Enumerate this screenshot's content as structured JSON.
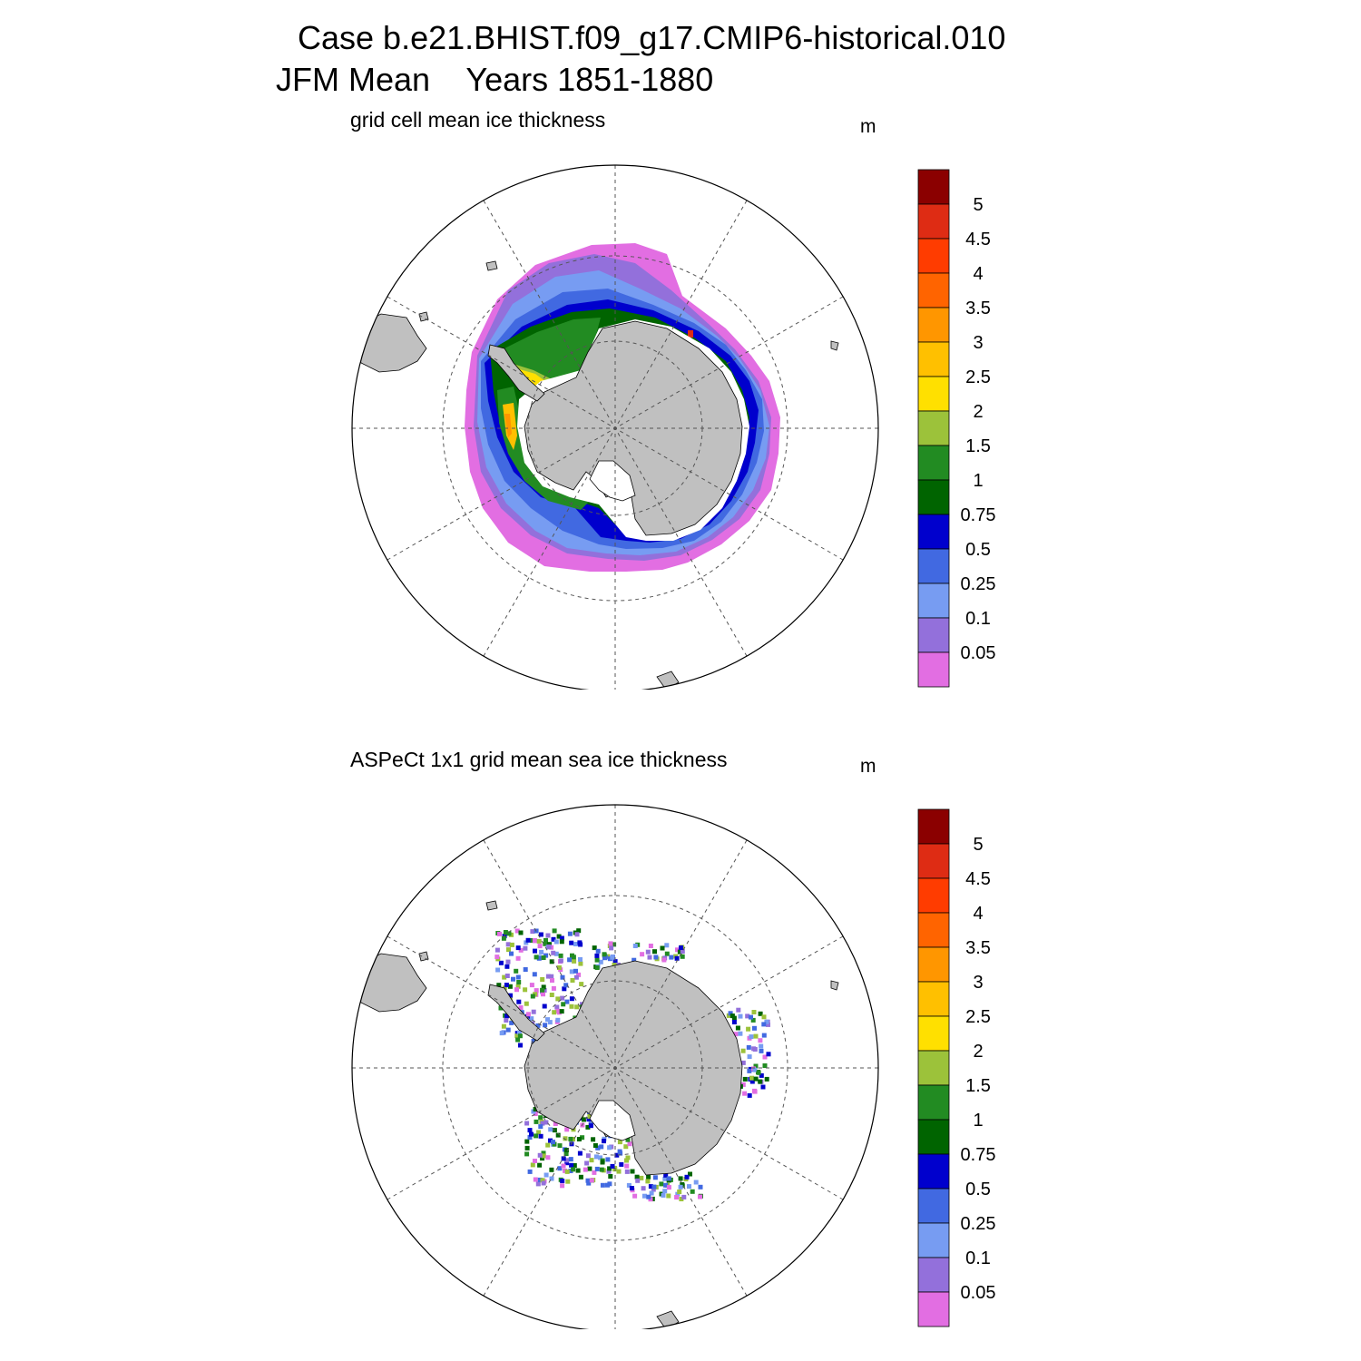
{
  "title": {
    "line1": "Case b.e21.BHIST.f09_g17.CMIP6-historical.010",
    "line2": "JFM Mean    Years 1851-1880"
  },
  "panels": [
    {
      "subtitle": "grid cell mean ice thickness",
      "units": "m"
    },
    {
      "subtitle": "ASPeCt 1x1 grid mean sea ice thickness",
      "units": "m"
    }
  ],
  "colorbar": {
    "labels": [
      "5",
      "4.5",
      "4",
      "3.5",
      "3",
      "2.5",
      "2",
      "1.5",
      "1",
      "0.75",
      "0.5",
      "0.25",
      "0.1",
      "0.05"
    ],
    "colors": [
      "#8b0000",
      "#de2c14",
      "#ff3c00",
      "#ff6400",
      "#ff9600",
      "#ffc000",
      "#ffe000",
      "#9cc23a",
      "#228b22",
      "#006400",
      "#0000cd",
      "#4169e1",
      "#779cf2",
      "#9370db",
      "#e26ee2"
    ]
  },
  "colors": {
    "land": "#c0c0c0",
    "model_white_gap": "#ffffff",
    "grid_line": "#555555"
  }
}
